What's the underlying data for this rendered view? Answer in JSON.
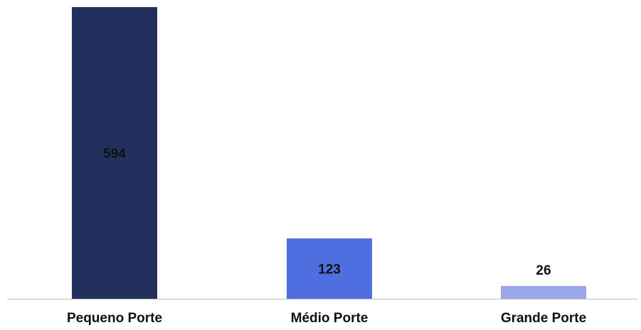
{
  "chart_data": {
    "type": "bar",
    "categories": [
      "Pequeno Porte",
      "Médio Porte",
      "Grande Porte"
    ],
    "values": [
      594,
      123,
      26
    ],
    "title": "",
    "xlabel": "",
    "ylabel": "",
    "ylim": [
      0,
      600
    ],
    "grid": false,
    "legend": "none",
    "colors": [
      "#22305E",
      "#4F6FE0",
      "#9AA8EA"
    ],
    "axis_color": "#BFBFBF",
    "label_color": "#111111"
  }
}
